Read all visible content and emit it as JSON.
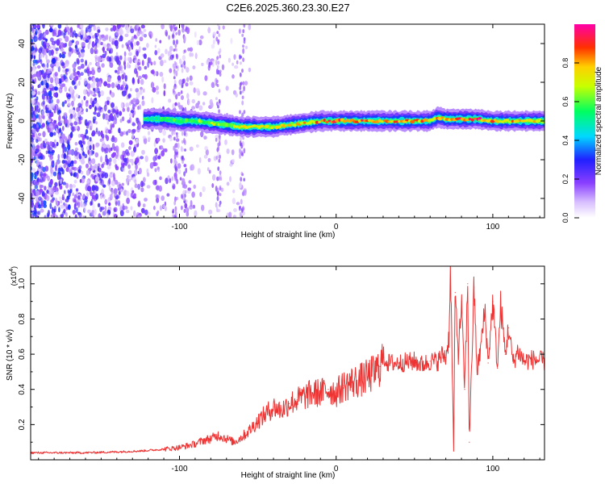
{
  "title": "C2E6.2025.360.23.30.E27",
  "chart_data": [
    {
      "type": "heatmap",
      "title": "C2E6.2025.360.23.30.E27",
      "xlabel": "Height of straight line (km)",
      "ylabel": "Frequency (Hz)",
      "xlim": [
        -195,
        133
      ],
      "ylim": [
        -50,
        50
      ],
      "xticks": [
        -100,
        0,
        100
      ],
      "xtick_labels": [
        "-100",
        "0",
        "100"
      ],
      "yticks": [
        -40,
        -20,
        0,
        20,
        40
      ],
      "ytick_labels": [
        "-40",
        "-20",
        "0",
        "20",
        "40"
      ],
      "colorbar": {
        "label": "Normalized spectral amplitude",
        "range": [
          0,
          1
        ],
        "ticks": [
          0.0,
          0.2,
          0.4,
          0.6,
          0.8
        ],
        "tick_labels": [
          "0.0",
          "0.2",
          "0.4",
          "0.6",
          "0.8"
        ]
      },
      "ridge": {
        "description_values_only": "dominant frequency ridge (Hz) vs height (km)",
        "x": [
          -123,
          -110,
          -100,
          -90,
          -80,
          -70,
          -60,
          -50,
          -40,
          -30,
          -20,
          -10,
          0,
          10,
          20,
          30,
          40,
          50,
          60,
          65,
          70,
          80,
          90,
          100,
          110,
          120,
          133
        ],
        "y": [
          1,
          1,
          0,
          0,
          -1,
          -2,
          -3,
          -3,
          -3,
          -2,
          -1,
          0,
          0,
          0,
          0,
          0,
          0,
          0,
          0,
          2,
          1,
          1,
          1,
          0,
          0,
          0,
          0
        ],
        "peak_amplitude": [
          0.55,
          0.6,
          0.65,
          0.7,
          0.72,
          0.75,
          0.78,
          0.8,
          0.8,
          0.82,
          0.85,
          0.95,
          1.0,
          1.0,
          1.0,
          0.95,
          0.9,
          0.9,
          0.88,
          0.9,
          0.9,
          0.95,
          1.0,
          0.95,
          0.9,
          0.85,
          0.8
        ]
      },
      "noise_region": {
        "x_range": [
          -195,
          -55
        ],
        "y_range": [
          -50,
          50
        ],
        "amplitude": [
          0.05,
          0.35
        ]
      }
    },
    {
      "type": "line",
      "xlabel": "Height of straight line (km)",
      "ylabel": "SNR (10 * v/v)",
      "y_scale_label": "(x10",
      "y_scale_exponent": "4",
      "y_scale_close": ")",
      "xlim": [
        -195,
        133
      ],
      "ylim": [
        0,
        1.1
      ],
      "xticks": [
        -100,
        0,
        100
      ],
      "xtick_labels": [
        "-100",
        "0",
        "100"
      ],
      "yticks": [
        0.2,
        0.4,
        0.6,
        0.8,
        1.0
      ],
      "ytick_labels": [
        "0.2",
        "0.4",
        "0.6",
        "0.8",
        "1.0"
      ],
      "series": [
        {
          "name": "SNR",
          "color": "#ee3333",
          "x": [
            -195,
            -180,
            -160,
            -140,
            -125,
            -110,
            -100,
            -90,
            -85,
            -80,
            -75,
            -70,
            -65,
            -60,
            -55,
            -50,
            -45,
            -40,
            -35,
            -30,
            -25,
            -20,
            -15,
            -10,
            -5,
            0,
            5,
            10,
            15,
            20,
            25,
            28,
            30,
            33,
            40,
            50,
            55,
            60,
            65,
            68,
            70,
            72,
            73,
            75,
            76,
            78,
            80,
            82,
            84,
            85,
            88,
            90,
            92,
            95,
            97,
            100,
            103,
            105,
            108,
            110,
            113,
            116,
            120,
            125,
            133
          ],
          "y": [
            0.04,
            0.04,
            0.04,
            0.045,
            0.05,
            0.06,
            0.07,
            0.09,
            0.11,
            0.12,
            0.14,
            0.12,
            0.1,
            0.13,
            0.17,
            0.22,
            0.26,
            0.3,
            0.28,
            0.32,
            0.34,
            0.36,
            0.38,
            0.38,
            0.4,
            0.38,
            0.42,
            0.44,
            0.45,
            0.47,
            0.5,
            0.53,
            0.59,
            0.55,
            0.55,
            0.56,
            0.54,
            0.56,
            0.56,
            0.6,
            0.58,
            0.7,
            1.1,
            0.05,
            0.95,
            0.6,
            0.9,
            0.4,
            1.0,
            0.1,
            0.98,
            0.5,
            0.62,
            0.85,
            0.55,
            0.9,
            0.52,
            0.88,
            0.6,
            0.75,
            0.55,
            0.62,
            0.56,
            0.57,
            0.56
          ]
        }
      ]
    }
  ]
}
